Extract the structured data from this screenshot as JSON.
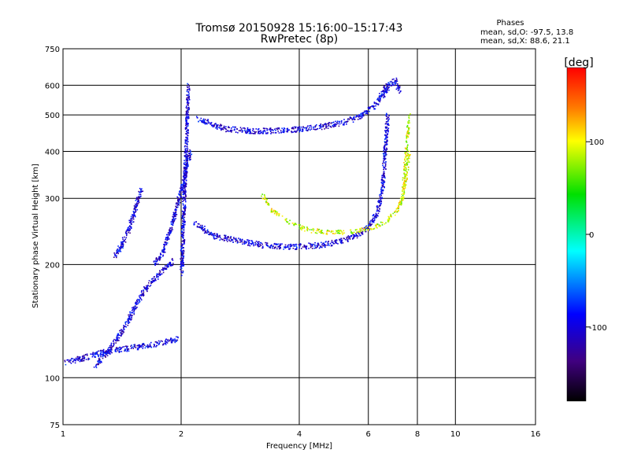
{
  "chart_data": {
    "type": "scatter",
    "title": "Tromsø 20150928 15:16:00–15:17:43",
    "subtitle": "RwPretec (8p)",
    "xlabel": "Frequency [MHz]",
    "ylabel": "Stationary phase Virtual Height [km]",
    "x_scale": "log",
    "y_scale": "log",
    "xlim": [
      1,
      16
    ],
    "ylim": [
      75,
      750
    ],
    "x_ticks": [
      1,
      2,
      4,
      6,
      8,
      10,
      16
    ],
    "x_tick_labels": [
      "1",
      "2",
      "4",
      "6",
      "8",
      "10",
      "16"
    ],
    "y_ticks": [
      75,
      100,
      200,
      300,
      400,
      500,
      600,
      750
    ],
    "y_tick_labels": [
      "75",
      "100",
      "200",
      "300",
      "400",
      "500",
      "600",
      "750"
    ],
    "grid": true,
    "stats": {
      "header": "Phases",
      "line_o": "mean, sd,O: -97.5, 13.8",
      "line_x": "mean, sd,X: 88.6, 21.1"
    },
    "colorbar": {
      "label": "[deg]",
      "range": [
        -180,
        180
      ],
      "tick_values": [
        100,
        0,
        -100
      ],
      "tick_labels": [
        "100",
        "0",
        "-100"
      ]
    },
    "traces": [
      {
        "segments": [
          {
            "x": [
              1.0,
              1.12,
              1.25,
              1.45,
              1.7,
              1.95
            ],
            "y": [
              110,
              113,
              117,
              120,
              123,
              127
            ]
          },
          {
            "x": [
              1.2,
              1.3,
              1.4,
              1.5,
              1.6,
              1.75,
              1.9
            ],
            "y": [
              108,
              118,
              132,
              150,
              170,
              190,
              205
            ]
          },
          {
            "x": [
              1.35,
              1.45,
              1.52,
              1.58
            ],
            "y": [
              210,
              240,
              280,
              320
            ]
          },
          {
            "x": [
              1.7,
              1.8,
              1.9,
              2.0,
              2.1
            ],
            "y": [
              200,
              220,
              260,
              320,
              400
            ]
          },
          {
            "x": [
              2.0,
              2.03,
              2.06,
              2.08
            ],
            "y": [
              190,
              300,
              450,
              600
            ]
          },
          {
            "x": [
              2.15,
              2.4,
              2.8,
              3.2,
              3.6,
              4.0,
              4.5,
              5.0,
              5.6,
              6.0
            ],
            "y": [
              260,
              240,
              232,
              226,
              224,
              224,
              226,
              230,
              240,
              252
            ]
          },
          {
            "x": [
              6.0,
              6.3,
              6.5,
              6.6,
              6.7
            ],
            "y": [
              252,
              275,
              320,
              400,
              500
            ]
          },
          {
            "x": [
              2.2,
              2.6,
              3.0,
              3.5,
              4.0,
              4.6,
              5.2,
              5.8,
              6.3,
              6.7
            ],
            "y": [
              490,
              460,
              455,
              455,
              460,
              468,
              480,
              500,
              540,
              610
            ]
          },
          {
            "x": [
              6.5,
              6.75,
              7.0,
              7.2
            ],
            "y": [
              560,
              600,
              620,
              580
            ]
          }
        ],
        "phase": -100,
        "jitter": 0.015,
        "density": 2.0
      },
      {
        "segments": [
          {
            "x": [
              3.2,
              3.4,
              3.8,
              4.2,
              4.8,
              5.4,
              6.0,
              6.6,
              7.1,
              7.4,
              7.6
            ],
            "y": [
              310,
              280,
              258,
              248,
              244,
              245,
              250,
              260,
              280,
              320,
              400
            ]
          },
          {
            "x": [
              7.3,
              7.5,
              7.6
            ],
            "y": [
              300,
              420,
              500
            ]
          }
        ],
        "phase": 90,
        "jitter": 0.012,
        "density": 1.2
      }
    ]
  }
}
